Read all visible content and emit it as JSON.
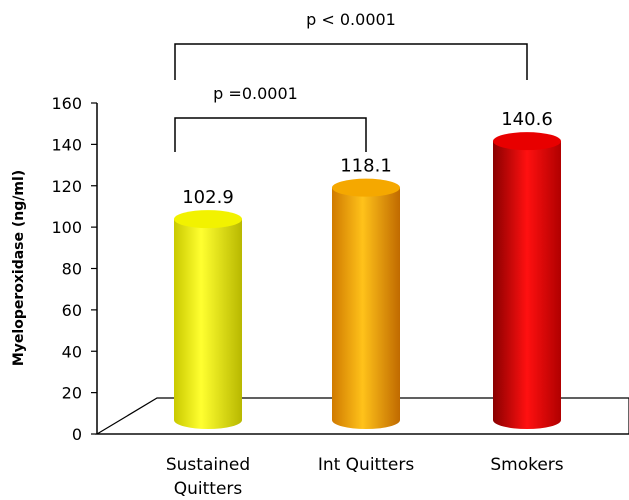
{
  "chart_data": {
    "type": "bar",
    "ylabel": "Myeloperoxidase (ng/ml)",
    "ylim": [
      0,
      160
    ],
    "yticks": [
      0,
      20,
      40,
      60,
      80,
      100,
      120,
      140,
      160
    ],
    "categories": [
      [
        "Sustained",
        "Quitters"
      ],
      [
        "Int Quitters"
      ],
      [
        "Smokers"
      ]
    ],
    "values": [
      102.9,
      118.1,
      140.6
    ],
    "value_labels": [
      "102.9",
      "118.1",
      "140.6"
    ],
    "colors": [
      "#f2f200",
      "#f5a800",
      "#e80000"
    ],
    "annotations": [
      {
        "text": "p =0.0001",
        "from": 0,
        "to": 1
      },
      {
        "text": "p < 0.0001",
        "from": 0,
        "to": 2
      }
    ],
    "grid": false,
    "legend": "none",
    "style": "3d-cylinder"
  }
}
